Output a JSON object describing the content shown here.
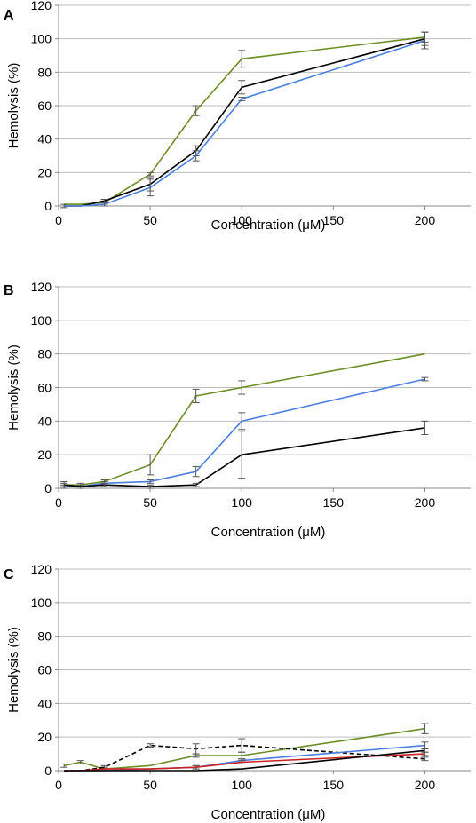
{
  "chart_data": [
    {
      "type": "line",
      "panel_label": "A",
      "xlabel": "Concentration (μM)",
      "ylabel": "Hemolysis (%)",
      "xlim": [
        0,
        225
      ],
      "ylim": [
        0,
        120
      ],
      "x_ticks": [
        0,
        50,
        100,
        150,
        200
      ],
      "y_ticks": [
        0,
        20,
        40,
        60,
        80,
        100,
        120
      ],
      "grid": "horizontal",
      "series": [
        {
          "color": "#6b8e23",
          "dash": false,
          "points": [
            [
              3,
              1
            ],
            [
              12,
              1
            ],
            [
              25,
              2
            ],
            [
              50,
              19
            ],
            [
              75,
              57
            ],
            [
              100,
              88
            ],
            [
              200,
              101
            ]
          ],
          "errors": [
            0,
            0,
            1,
            1,
            3,
            5,
            3
          ]
        },
        {
          "color": "#000000",
          "dash": false,
          "points": [
            [
              3,
              0
            ],
            [
              12,
              0
            ],
            [
              25,
              3
            ],
            [
              50,
              13
            ],
            [
              75,
              33
            ],
            [
              100,
              71
            ],
            [
              200,
              100
            ]
          ],
          "errors": [
            0,
            0,
            1,
            4,
            3,
            4,
            4
          ]
        },
        {
          "color": "#4a7fe0",
          "dash": false,
          "points": [
            [
              3,
              0
            ],
            [
              12,
              0
            ],
            [
              25,
              1
            ],
            [
              50,
              11
            ],
            [
              75,
              30
            ],
            [
              100,
              64
            ],
            [
              200,
              99
            ]
          ],
          "errors": [
            1,
            0,
            1,
            5,
            3,
            1,
            5
          ]
        }
      ]
    },
    {
      "type": "line",
      "panel_label": "B",
      "xlabel": "Concentration (μM)",
      "ylabel": "Hemolysis (%)",
      "xlim": [
        0,
        225
      ],
      "ylim": [
        0,
        120
      ],
      "x_ticks": [
        0,
        50,
        100,
        150,
        200
      ],
      "y_ticks": [
        0,
        20,
        40,
        60,
        80,
        100,
        120
      ],
      "grid": "horizontal",
      "series": [
        {
          "color": "#6b8e23",
          "dash": false,
          "points": [
            [
              3,
              2
            ],
            [
              12,
              2
            ],
            [
              25,
              4
            ],
            [
              50,
              14
            ],
            [
              75,
              55
            ],
            [
              100,
              60
            ],
            [
              200,
              80
            ]
          ],
          "errors": [
            1,
            1,
            1,
            6,
            4,
            4,
            0
          ]
        },
        {
          "color": "#4a7fe0",
          "dash": false,
          "points": [
            [
              3,
              1
            ],
            [
              12,
              1
            ],
            [
              25,
              3
            ],
            [
              50,
              4
            ],
            [
              75,
              10
            ],
            [
              100,
              40
            ],
            [
              200,
              65
            ]
          ],
          "errors": [
            1,
            1,
            1,
            1,
            3,
            5,
            1
          ]
        },
        {
          "color": "#000000",
          "dash": false,
          "points": [
            [
              3,
              2
            ],
            [
              12,
              1
            ],
            [
              25,
              2
            ],
            [
              50,
              1
            ],
            [
              75,
              2
            ],
            [
              100,
              20
            ],
            [
              200,
              36
            ]
          ],
          "errors": [
            2,
            0,
            1,
            1,
            1,
            14,
            4
          ]
        }
      ]
    },
    {
      "type": "line",
      "panel_label": "C",
      "xlabel": "Concentration (μM)",
      "ylabel": "Hemolysis (%)",
      "xlim": [
        0,
        225
      ],
      "ylim": [
        0,
        120
      ],
      "x_ticks": [
        0,
        50,
        100,
        150,
        200
      ],
      "y_ticks": [
        0,
        20,
        40,
        60,
        80,
        100,
        120
      ],
      "grid": "horizontal",
      "series": [
        {
          "color": "#6b8e23",
          "dash": false,
          "points": [
            [
              3,
              3
            ],
            [
              12,
              5
            ],
            [
              25,
              1
            ],
            [
              50,
              3
            ],
            [
              75,
              9
            ],
            [
              100,
              9
            ],
            [
              200,
              25
            ]
          ],
          "errors": [
            1,
            1,
            1,
            0,
            1,
            2,
            3
          ]
        },
        {
          "color": "#000000",
          "dash": true,
          "points": [
            [
              3,
              0
            ],
            [
              12,
              0
            ],
            [
              25,
              2
            ],
            [
              50,
              15
            ],
            [
              75,
              13
            ],
            [
              100,
              15
            ],
            [
              200,
              7
            ]
          ],
          "errors": [
            0,
            0,
            1,
            1,
            3,
            4,
            1
          ]
        },
        {
          "color": "#4a7fe0",
          "dash": false,
          "points": [
            [
              3,
              0
            ],
            [
              12,
              0
            ],
            [
              25,
              0
            ],
            [
              50,
              1
            ],
            [
              75,
              2
            ],
            [
              100,
              6
            ],
            [
              200,
              15
            ]
          ],
          "errors": [
            0,
            0,
            0,
            0,
            1,
            1,
            2
          ]
        },
        {
          "color": "#cc2222",
          "dash": false,
          "points": [
            [
              3,
              0
            ],
            [
              12,
              0
            ],
            [
              25,
              1
            ],
            [
              50,
              1
            ],
            [
              75,
              2
            ],
            [
              100,
              5
            ],
            [
              200,
              10
            ]
          ],
          "errors": [
            0,
            0,
            0,
            0,
            1,
            1,
            1
          ]
        },
        {
          "color": "#000000",
          "dash": false,
          "points": [
            [
              3,
              0
            ],
            [
              12,
              0
            ],
            [
              25,
              0
            ],
            [
              50,
              0
            ],
            [
              75,
              0
            ],
            [
              100,
              1
            ],
            [
              200,
              12
            ]
          ],
          "errors": [
            0,
            0,
            0,
            0,
            0,
            0,
            1
          ]
        }
      ]
    }
  ]
}
